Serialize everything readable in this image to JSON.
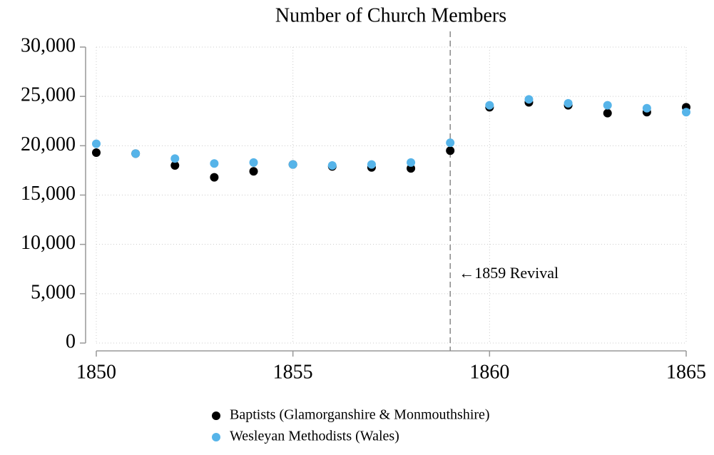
{
  "chart_data": {
    "type": "scatter",
    "title": "Number of Church Members",
    "x": [
      1850,
      1851,
      1852,
      1853,
      1854,
      1855,
      1856,
      1857,
      1858,
      1859,
      1860,
      1861,
      1862,
      1863,
      1864,
      1865
    ],
    "series": [
      {
        "name": "Baptists (Glamorganshire & Monmouthshire)",
        "color": "#000000",
        "values": [
          19300,
          19200,
          18000,
          16800,
          17400,
          18100,
          17900,
          17800,
          17700,
          19500,
          23900,
          24400,
          24100,
          23300,
          23400,
          23900
        ]
      },
      {
        "name": "Wesleyan Methodists (Wales)",
        "color": "#56b4e9",
        "values": [
          20200,
          19200,
          18700,
          18200,
          18300,
          18100,
          18000,
          18100,
          18300,
          20300,
          24100,
          24700,
          24300,
          24100,
          23800,
          23400
        ]
      }
    ],
    "xlim": [
      1850,
      1865
    ],
    "xticks": [
      1850,
      1855,
      1860,
      1865
    ],
    "ylim": [
      0,
      30000
    ],
    "yticks": [
      0,
      {
        "value": 5000,
        "label": "5,000"
      },
      {
        "value": 10000,
        "label": "10,000"
      },
      {
        "value": 15000,
        "label": "15,000"
      },
      {
        "value": 20000,
        "label": "20,000"
      },
      {
        "value": 25000,
        "label": "25,000"
      },
      {
        "value": 30000,
        "label": "30,000"
      }
    ],
    "grid": true,
    "vline": {
      "x": 1859,
      "label": "←1859 Revival"
    },
    "legend": "bottom"
  }
}
